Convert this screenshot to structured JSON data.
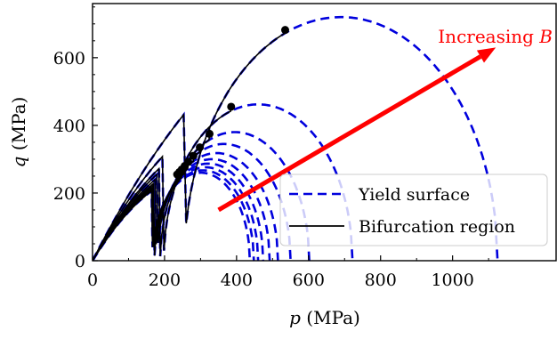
{
  "chart_data": {
    "type": "line",
    "xlabel_var": "p",
    "xlabel_unit": "(MPa)",
    "ylabel_var": "q",
    "ylabel_unit": "(MPa)",
    "xlim": [
      0,
      1290
    ],
    "ylim": [
      0,
      760
    ],
    "xticks": [
      0,
      200,
      400,
      600,
      800,
      1000
    ],
    "yticks": [
      0,
      200,
      400,
      600
    ],
    "grid": false,
    "legend_position": "lower-right",
    "legend": [
      {
        "label": "Yield surface",
        "style": "dashed",
        "color": "#0000dd"
      },
      {
        "label": "Bifurcation region",
        "style": "solid",
        "color": "#000000"
      }
    ],
    "annotation": {
      "text_prefix": "Increasing ",
      "text_var": "B",
      "color": "#ff0000",
      "arrow_from": [
        350,
        150
      ],
      "arrow_to": [
        1120,
        630
      ]
    },
    "yield_surfaces": [
      {
        "center_p": 690,
        "radius_p": 435,
        "peak_q": 720
      },
      {
        "center_p": 460,
        "radius_p": 262,
        "peak_q": 462
      },
      {
        "center_p": 395,
        "radius_p": 207,
        "peak_q": 380
      },
      {
        "center_p": 365,
        "radius_p": 185,
        "peak_q": 345
      },
      {
        "center_p": 345,
        "radius_p": 170,
        "peak_q": 318
      },
      {
        "center_p": 332,
        "radius_p": 160,
        "peak_q": 300
      },
      {
        "center_p": 322,
        "radius_p": 152,
        "peak_q": 287
      },
      {
        "center_p": 314,
        "radius_p": 146,
        "peak_q": 276
      },
      {
        "center_p": 307,
        "radius_p": 141,
        "peak_q": 267
      },
      {
        "center_p": 301,
        "radius_p": 136,
        "peak_q": 260
      }
    ],
    "bifurcation_points": [
      {
        "p": 535,
        "q": 682
      },
      {
        "p": 385,
        "q": 455
      },
      {
        "p": 325,
        "q": 375
      },
      {
        "p": 298,
        "q": 335
      },
      {
        "p": 280,
        "q": 310
      },
      {
        "p": 266,
        "q": 292
      },
      {
        "p": 256,
        "q": 280
      },
      {
        "p": 248,
        "q": 270
      },
      {
        "p": 241,
        "q": 262
      },
      {
        "p": 235,
        "q": 255
      }
    ]
  },
  "colors": {
    "yield": "#0000dd",
    "bifurcation": "#000000",
    "arrow": "#ff0000"
  }
}
